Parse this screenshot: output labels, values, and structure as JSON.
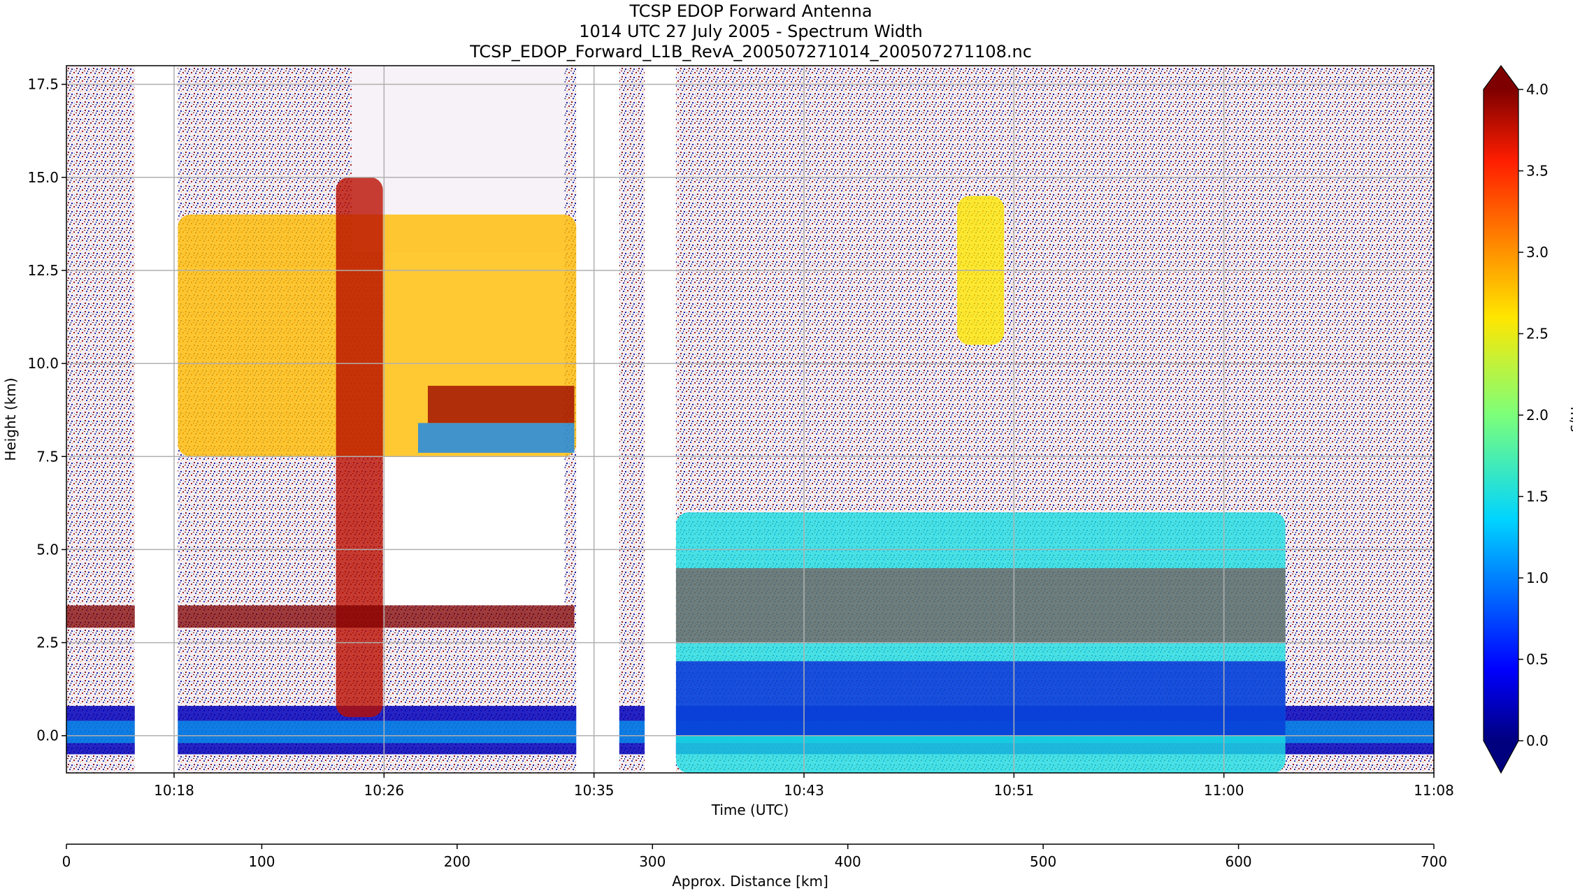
{
  "chart_data": {
    "type": "heatmap",
    "title_lines": [
      "TCSP EDOP Forward Antenna",
      "1014 UTC 27 July 2005 - Spectrum Width",
      "TCSP_EDOP_Forward_L1B_RevA_200507271014_200507271108.nc"
    ],
    "xlabel": "Time (UTC)",
    "ylabel": "Height (km)",
    "secondary_xlabel": "Approx. Distance [km]",
    "x_ticks": [
      "10:18",
      "10:26",
      "10:35",
      "10:43",
      "10:51",
      "11:00",
      "11:08"
    ],
    "y_ticks": [
      "0.0",
      "2.5",
      "5.0",
      "7.5",
      "10.0",
      "12.5",
      "15.0",
      "17.5"
    ],
    "ylim": [
      -1.0,
      18.0
    ],
    "distance_ticks": [
      "0",
      "100",
      "200",
      "300",
      "400",
      "500",
      "600",
      "700"
    ],
    "distance_xlim": [
      0,
      700
    ],
    "grid": true,
    "colorbar": {
      "label": "m/s",
      "ticks": [
        "0.0",
        "0.5",
        "1.0",
        "1.5",
        "2.0",
        "2.5",
        "3.0",
        "3.5",
        "4.0"
      ],
      "range": [
        0.0,
        4.0
      ],
      "colormap": "jet",
      "extend": "both"
    },
    "data_gaps_km": [
      [
        35,
        57
      ],
      [
        261,
        283
      ],
      [
        296,
        312
      ]
    ],
    "features": [
      {
        "kind": "surface-echo",
        "height_km": [
          -0.5,
          0.8
        ],
        "value_ms": 0.2
      },
      {
        "kind": "anvil-cloud",
        "distance_km": [
          57,
          261
        ],
        "height_km": [
          7.5,
          14.0
        ],
        "value_ms": 2.8
      },
      {
        "kind": "convective-tower",
        "distance_km": [
          138,
          162
        ],
        "height_km": [
          0.5,
          15.0
        ],
        "value_ms": 3.8
      },
      {
        "kind": "melting-layer",
        "distance_km": [
          0,
          260
        ],
        "height_km": 3.2,
        "value_ms": 4.0
      },
      {
        "kind": "stratiform-precip",
        "distance_km": [
          312,
          624
        ],
        "height_km": [
          -1.0,
          6.0
        ],
        "value_ms": 1.5
      },
      {
        "kind": "cloud-patch",
        "distance_km": [
          456,
          480
        ],
        "height_km": [
          10.5,
          14.5
        ],
        "value_ms": 2.6
      }
    ]
  }
}
